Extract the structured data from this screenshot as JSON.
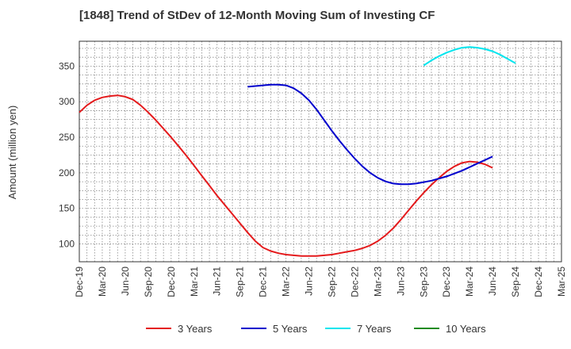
{
  "chart_data": {
    "type": "line",
    "title": "[1848]  Trend of StDev of 12-Month Moving Sum of Investing CF",
    "xlabel": "",
    "ylabel": "Amount (million yen)",
    "x_ticks": [
      "Dec-19",
      "Mar-20",
      "Jun-20",
      "Sep-20",
      "Dec-20",
      "Mar-21",
      "Jun-21",
      "Sep-21",
      "Dec-21",
      "Mar-22",
      "Jun-22",
      "Sep-22",
      "Dec-22",
      "Mar-23",
      "Jun-23",
      "Sep-23",
      "Dec-23",
      "Mar-24",
      "Jun-24",
      "Sep-24",
      "Dec-24",
      "Mar-25"
    ],
    "y_ticks": [
      100,
      150,
      200,
      250,
      300,
      350
    ],
    "ylim": [
      75,
      385
    ],
    "grid": true,
    "legend_position": "bottom",
    "series": [
      {
        "name": "3 Years",
        "color": "#e41a1c",
        "points": [
          [
            "Dec-19",
            285
          ],
          [
            "Jan-20",
            295
          ],
          [
            "Feb-20",
            302
          ],
          [
            "Mar-20",
            306
          ],
          [
            "Apr-20",
            308
          ],
          [
            "May-20",
            309
          ],
          [
            "Jun-20",
            307
          ],
          [
            "Jul-20",
            303
          ],
          [
            "Aug-20",
            295
          ],
          [
            "Sep-20",
            285
          ],
          [
            "Oct-20",
            274
          ],
          [
            "Nov-20",
            262
          ],
          [
            "Dec-20",
            250
          ],
          [
            "Jan-21",
            237
          ],
          [
            "Feb-21",
            224
          ],
          [
            "Mar-21",
            210
          ],
          [
            "Apr-21",
            196
          ],
          [
            "May-21",
            182
          ],
          [
            "Jun-21",
            168
          ],
          [
            "Jul-21",
            155
          ],
          [
            "Aug-21",
            142
          ],
          [
            "Sep-21",
            129
          ],
          [
            "Oct-21",
            116
          ],
          [
            "Nov-21",
            104
          ],
          [
            "Dec-21",
            95
          ],
          [
            "Jan-22",
            90
          ],
          [
            "Feb-22",
            87
          ],
          [
            "Mar-22",
            85
          ],
          [
            "Apr-22",
            84
          ],
          [
            "May-22",
            83
          ],
          [
            "Jun-22",
            83
          ],
          [
            "Jul-22",
            83
          ],
          [
            "Aug-22",
            84
          ],
          [
            "Sep-22",
            85
          ],
          [
            "Oct-22",
            87
          ],
          [
            "Nov-22",
            89
          ],
          [
            "Dec-22",
            91
          ],
          [
            "Jan-23",
            94
          ],
          [
            "Feb-23",
            98
          ],
          [
            "Mar-23",
            104
          ],
          [
            "Apr-23",
            112
          ],
          [
            "May-23",
            122
          ],
          [
            "Jun-23",
            134
          ],
          [
            "Jul-23",
            147
          ],
          [
            "Aug-23",
            160
          ],
          [
            "Sep-23",
            172
          ],
          [
            "Oct-23",
            183
          ],
          [
            "Nov-23",
            193
          ],
          [
            "Dec-23",
            202
          ],
          [
            "Jan-24",
            209
          ],
          [
            "Feb-24",
            214
          ],
          [
            "Mar-24",
            216
          ],
          [
            "Apr-24",
            215
          ],
          [
            "May-24",
            212
          ],
          [
            "Jun-24",
            207
          ]
        ]
      },
      {
        "name": "5 Years",
        "color": "#0000cd",
        "points": [
          [
            "Oct-21",
            321
          ],
          [
            "Nov-21",
            322
          ],
          [
            "Dec-21",
            323
          ],
          [
            "Jan-22",
            324
          ],
          [
            "Feb-22",
            324
          ],
          [
            "Mar-22",
            323
          ],
          [
            "Apr-22",
            319
          ],
          [
            "May-22",
            312
          ],
          [
            "Jun-22",
            302
          ],
          [
            "Jul-22",
            289
          ],
          [
            "Aug-22",
            274
          ],
          [
            "Sep-22",
            259
          ],
          [
            "Oct-22",
            245
          ],
          [
            "Nov-22",
            232
          ],
          [
            "Dec-22",
            220
          ],
          [
            "Jan-23",
            209
          ],
          [
            "Feb-23",
            200
          ],
          [
            "Mar-23",
            193
          ],
          [
            "Apr-23",
            188
          ],
          [
            "May-23",
            185
          ],
          [
            "Jun-23",
            184
          ],
          [
            "Jul-23",
            184
          ],
          [
            "Aug-23",
            185
          ],
          [
            "Sep-23",
            187
          ],
          [
            "Oct-23",
            189
          ],
          [
            "Nov-23",
            192
          ],
          [
            "Dec-23",
            195
          ],
          [
            "Jan-24",
            199
          ],
          [
            "Feb-24",
            203
          ],
          [
            "Mar-24",
            208
          ],
          [
            "Apr-24",
            213
          ],
          [
            "May-24",
            218
          ],
          [
            "Jun-24",
            223
          ]
        ]
      },
      {
        "name": "7 Years",
        "color": "#00e5ee",
        "points": [
          [
            "Sep-23",
            351
          ],
          [
            "Oct-23",
            358
          ],
          [
            "Nov-23",
            364
          ],
          [
            "Dec-23",
            369
          ],
          [
            "Jan-24",
            373
          ],
          [
            "Feb-24",
            376
          ],
          [
            "Mar-24",
            377
          ],
          [
            "Apr-24",
            376
          ],
          [
            "May-24",
            374
          ],
          [
            "Jun-24",
            371
          ],
          [
            "Jul-24",
            366
          ],
          [
            "Aug-24",
            360
          ],
          [
            "Sep-24",
            354
          ]
        ]
      },
      {
        "name": "10 Years",
        "color": "#228b22",
        "points": []
      }
    ]
  }
}
